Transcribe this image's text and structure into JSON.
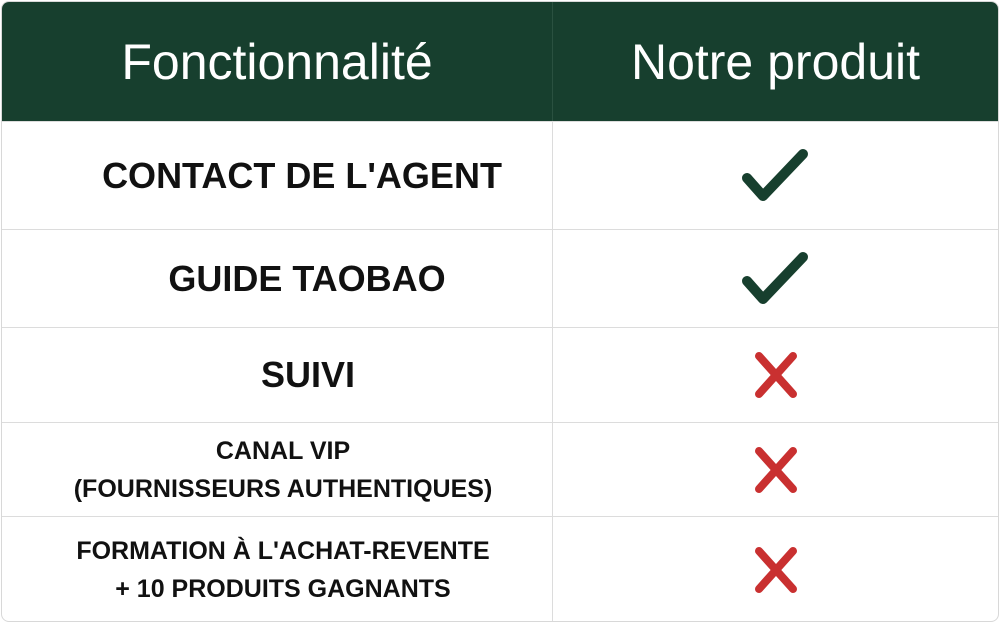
{
  "header": {
    "feature_label": "Fonctionnalité",
    "product_label": "Notre produit"
  },
  "rows": [
    {
      "feature": "CONTACT DE L'AGENT",
      "available": true,
      "icon": "check-icon"
    },
    {
      "feature": "GUIDE TAOBAO",
      "available": true,
      "icon": "check-icon"
    },
    {
      "feature": "SUIVI",
      "available": false,
      "icon": "cross-icon"
    },
    {
      "feature": "CANAL VIP\n(FOURNISSEURS AUTHENTIQUES)",
      "available": false,
      "icon": "cross-icon"
    },
    {
      "feature": "FORMATION À L'ACHAT-REVENTE\n+ 10 PRODUITS GAGNANTS",
      "available": false,
      "icon": "cross-icon"
    }
  ],
  "colors": {
    "header_bg": "#173f2e",
    "check": "#173f2e",
    "cross": "#c93030"
  }
}
